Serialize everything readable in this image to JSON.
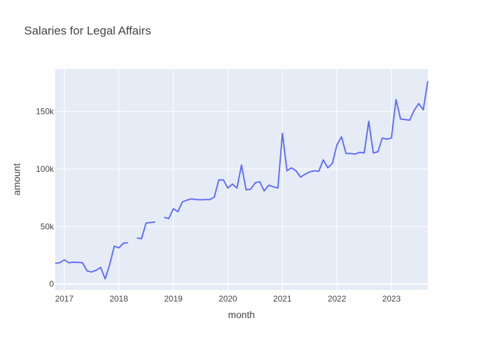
{
  "chart_data": {
    "type": "line",
    "title": "Salaries for Legal Affairs",
    "xlabel": "month",
    "ylabel": "amount",
    "xlim": [
      "2016-11",
      "2023-09"
    ],
    "ylim": [
      -5000,
      187000
    ],
    "x_ticks": [
      {
        "value": "2017-01",
        "label": "2017"
      },
      {
        "value": "2018-01",
        "label": "2018"
      },
      {
        "value": "2019-01",
        "label": "2019"
      },
      {
        "value": "2020-01",
        "label": "2020"
      },
      {
        "value": "2021-01",
        "label": "2021"
      },
      {
        "value": "2022-01",
        "label": "2022"
      },
      {
        "value": "2023-01",
        "label": "2023"
      }
    ],
    "y_ticks": [
      {
        "value": 0,
        "label": "0"
      },
      {
        "value": 50000,
        "label": "50k"
      },
      {
        "value": 100000,
        "label": "100k"
      },
      {
        "value": 150000,
        "label": "150k"
      }
    ],
    "grid": true,
    "line_color": "#636efa",
    "plot_background": "#e5ecf6",
    "series": [
      {
        "x": [
          "2016-11",
          "2016-12",
          "2017-01",
          "2017-02",
          "2017-03",
          "2017-04",
          "2017-05",
          "2017-06",
          "2017-07",
          "2017-08",
          "2017-09",
          "2017-10",
          "2017-11",
          "2017-12",
          "2018-01",
          "2018-02",
          "2018-03",
          "2018-04",
          "2018-05",
          "2018-06",
          "2018-07",
          "2018-08",
          "2018-09",
          "2018-10",
          "2018-11",
          "2018-12",
          "2019-01",
          "2019-02",
          "2019-03",
          "2019-04",
          "2019-05",
          "2019-06",
          "2019-07",
          "2019-08",
          "2019-09",
          "2019-10",
          "2019-11",
          "2019-12",
          "2020-01",
          "2020-02",
          "2020-03",
          "2020-04",
          "2020-05",
          "2020-06",
          "2020-07",
          "2020-08",
          "2020-09",
          "2020-10",
          "2020-11",
          "2020-12",
          "2021-01",
          "2021-02",
          "2021-03",
          "2021-04",
          "2021-05",
          "2021-06",
          "2021-07",
          "2021-08",
          "2021-09",
          "2021-10",
          "2021-11",
          "2021-12",
          "2022-01",
          "2022-02",
          "2022-03",
          "2022-04",
          "2022-05",
          "2022-06",
          "2022-07",
          "2022-08",
          "2022-09",
          "2022-10",
          "2022-11",
          "2022-12",
          "2023-01",
          "2023-02",
          "2023-03",
          "2023-04",
          "2023-05",
          "2023-06",
          "2023-07",
          "2023-08",
          "2023-09"
        ],
        "y": [
          18000,
          18500,
          21000,
          18500,
          19000,
          18800,
          18600,
          11500,
          10500,
          12000,
          14500,
          4500,
          17000,
          33000,
          31500,
          35500,
          36000,
          null,
          40000,
          39500,
          53000,
          53500,
          54000,
          null,
          58000,
          57000,
          65500,
          63000,
          71500,
          73000,
          74000,
          73500,
          73300,
          73500,
          73400,
          75500,
          90500,
          90500,
          83500,
          87000,
          83500,
          103500,
          82000,
          82500,
          88000,
          89000,
          81000,
          86000,
          84500,
          83500,
          131000,
          98500,
          101000,
          98500,
          93000,
          95500,
          97500,
          98500,
          98000,
          108000,
          101000,
          105000,
          121000,
          128000,
          113500,
          113500,
          113000,
          114500,
          114000,
          141500,
          114000,
          115000,
          127000,
          126000,
          127000,
          160500,
          143500,
          143000,
          142500,
          151000,
          157000,
          151500,
          176500
        ]
      }
    ]
  }
}
